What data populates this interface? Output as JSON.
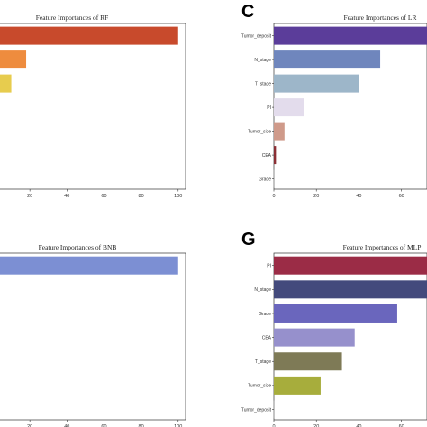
{
  "chart_data": [
    {
      "type": "bar",
      "orientation": "horizontal",
      "title": "Feature Importances of RF",
      "panel_letter": "",
      "categories": [
        "",
        "",
        "",
        "",
        "",
        "",
        ""
      ],
      "values": [
        100,
        18,
        10,
        0,
        0,
        0,
        0
      ],
      "colors": [
        "#c84a2c",
        "#ee8c3e",
        "#e7cc4e",
        "#bbbbbb",
        "#bbbbbb",
        "#bbbbbb",
        "#bbbbbb"
      ],
      "xticks": [
        20,
        40,
        60,
        80,
        100
      ],
      "xlim": [
        0,
        104
      ]
    },
    {
      "type": "bar",
      "orientation": "horizontal",
      "title": "Feature Importances of LR",
      "panel_letter": "C",
      "categories": [
        "Tumor_deposit",
        "N_stage",
        "T_stage",
        "PI",
        "Tumor_size",
        "CEA",
        "Grade"
      ],
      "values": [
        72,
        50,
        40,
        14,
        5,
        1,
        0
      ],
      "colors": [
        "#5b3d9a",
        "#6f86bd",
        "#9db6c9",
        "#e3dcec",
        "#cf9a8a",
        "#8b2f35",
        "#999999"
      ],
      "xticks": [
        0,
        20,
        40,
        60
      ],
      "xlim": [
        0,
        72
      ]
    },
    {
      "type": "bar",
      "orientation": "horizontal",
      "title": "Feature Importances of BNB",
      "panel_letter": "",
      "categories": [
        "",
        "",
        "",
        "",
        "",
        "",
        ""
      ],
      "values": [
        100,
        0,
        0,
        0,
        0,
        0,
        0
      ],
      "colors": [
        "#7c8fd3",
        "#bbbbbb",
        "#bbbbbb",
        "#bbbbbb",
        "#bbbbbb",
        "#bbbbbb",
        "#bbbbbb"
      ],
      "xticks": [
        20,
        40,
        60,
        80,
        100
      ],
      "xlim": [
        0,
        104
      ]
    },
    {
      "type": "bar",
      "orientation": "horizontal",
      "title": "Feature Importances of MLP",
      "panel_letter": "G",
      "categories": [
        "PI",
        "N_stage",
        "Grade",
        "CEA",
        "T_stage",
        "Tumor_size",
        "Tumor_deposit"
      ],
      "values": [
        72,
        72,
        58,
        38,
        32,
        22,
        0
      ],
      "colors": [
        "#9b2c46",
        "#434a7c",
        "#6a66bd",
        "#9690cc",
        "#7e7a56",
        "#a7ad3c",
        "#999999"
      ],
      "xticks": [
        0,
        20,
        40,
        60
      ],
      "xlim": [
        0,
        72
      ]
    }
  ]
}
